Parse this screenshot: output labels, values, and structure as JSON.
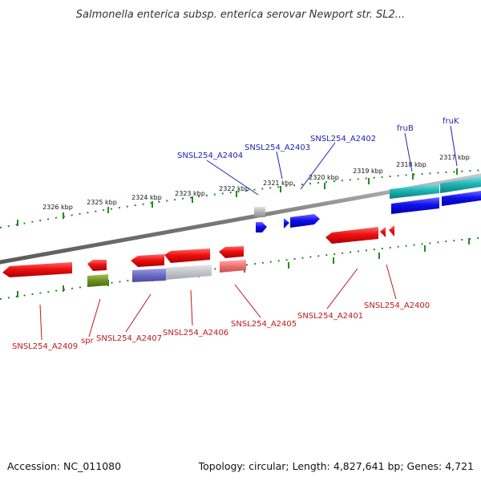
{
  "title": "Salmonella enterica subsp. enterica serovar Newport str. SL2...",
  "footer": {
    "accession": "Accession: NC_011080",
    "summary": "Topology: circular; Length: 4,827,641 bp; Genes: 4,721"
  },
  "colors": {
    "backbone": "#8a8a8a",
    "tick": "#228b22",
    "forward_cds": "#1010ee",
    "reverse_cds": "#ee1010",
    "trna": "#1fb5b5",
    "pseudo": "#a8a8a8",
    "label_top": "#1f1fb0",
    "label_bottom": "#c01818"
  },
  "kbp_ticks": [
    {
      "id": "2326",
      "label": "2326 kbp"
    },
    {
      "id": "2325",
      "label": "2325 kbp"
    },
    {
      "id": "2324",
      "label": "2324 kbp"
    },
    {
      "id": "2323",
      "label": "2323 kbp"
    },
    {
      "id": "2322",
      "label": "2322 kbp"
    },
    {
      "id": "2321",
      "label": "2321 kbp"
    },
    {
      "id": "2320",
      "label": "2320 kbp"
    },
    {
      "id": "2319",
      "label": "2319 kbp"
    },
    {
      "id": "2318",
      "label": "2318 kbp"
    },
    {
      "id": "2317",
      "label": "2317 kbp"
    }
  ],
  "top_labels": [
    {
      "id": "a2404",
      "text": "SNSL254_A2404"
    },
    {
      "id": "a2403",
      "text": "SNSL254_A2403"
    },
    {
      "id": "a2402",
      "text": "SNSL254_A2402"
    },
    {
      "id": "fruB",
      "text": "fruB"
    },
    {
      "id": "fruK",
      "text": "fruK"
    }
  ],
  "bottom_labels": [
    {
      "id": "a2409",
      "text": "SNSL254_A2409"
    },
    {
      "id": "spr",
      "text": "spr"
    },
    {
      "id": "a2407",
      "text": "SNSL254_A2407"
    },
    {
      "id": "a2406",
      "text": "SNSL254_A2406"
    },
    {
      "id": "a2405",
      "text": "SNSL254_A2405"
    },
    {
      "id": "a2401",
      "text": "SNSL254_A2401"
    },
    {
      "id": "a2400",
      "text": "SNSL254_A2400"
    }
  ]
}
